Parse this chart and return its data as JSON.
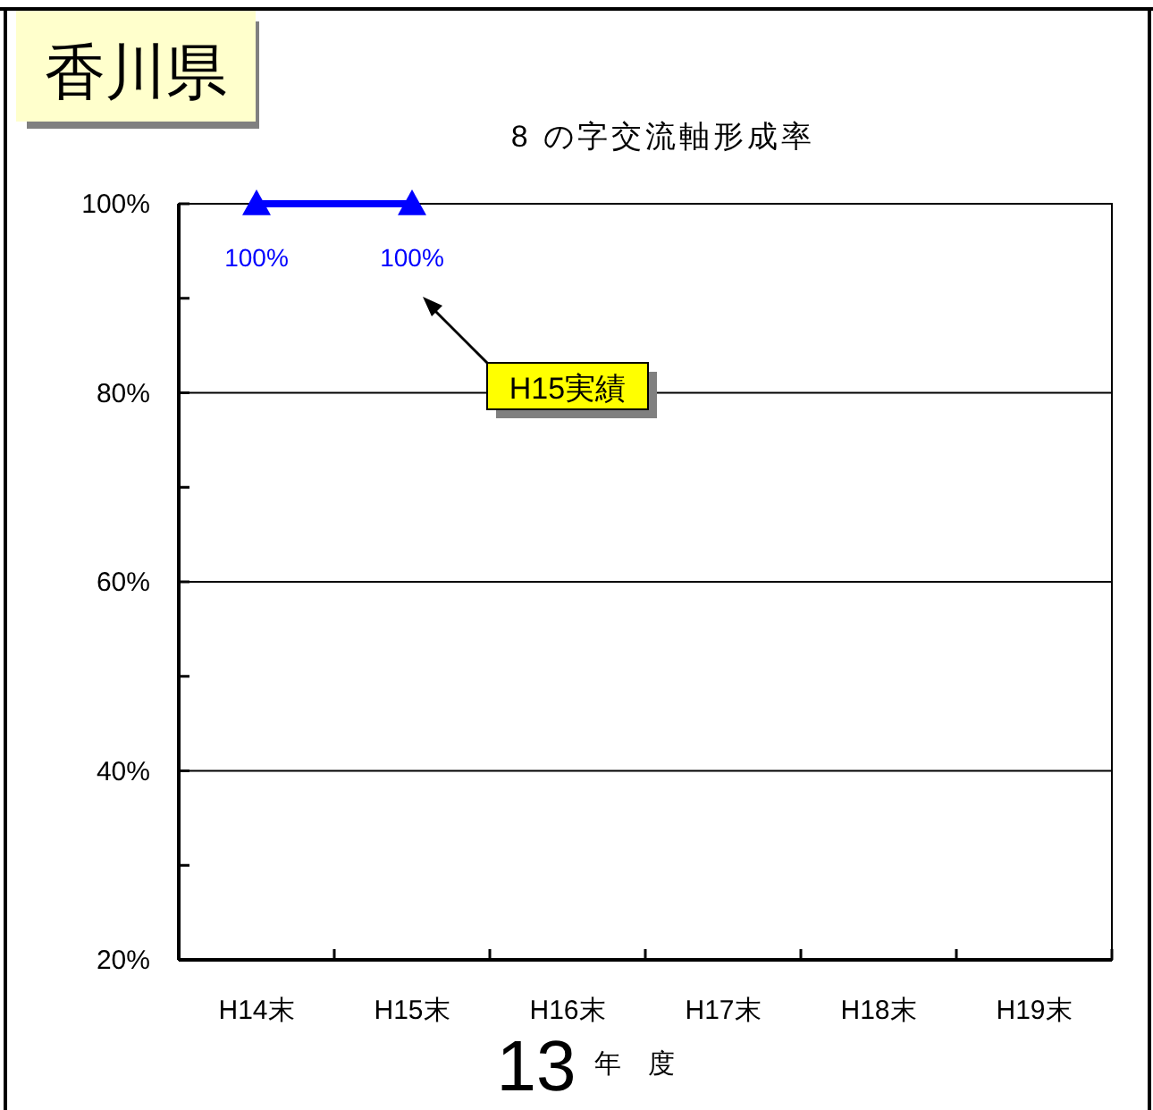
{
  "chart_data": {
    "type": "line",
    "title": "8 の字交流軸形成率",
    "xlabel": "年　度",
    "categories": [
      "H14末",
      "H15末",
      "H16末",
      "H17末",
      "H18末",
      "H19末"
    ],
    "series": [
      {
        "color": "#0000ff",
        "values": [
          100,
          100,
          null,
          null,
          null,
          null
        ],
        "value_labels": [
          "100%",
          "100%",
          null,
          null,
          null,
          null
        ]
      }
    ],
    "ylim": [
      20,
      100
    ],
    "yticks": [
      {
        "value": 20,
        "label": "20%"
      },
      {
        "value": 30,
        "label": null
      },
      {
        "value": 40,
        "label": "40%"
      },
      {
        "value": 50,
        "label": null
      },
      {
        "value": 60,
        "label": "60%"
      },
      {
        "value": 70,
        "label": null
      },
      {
        "value": 80,
        "label": "80%"
      },
      {
        "value": 90,
        "label": null
      },
      {
        "value": 100,
        "label": "100%"
      }
    ],
    "grid": "y",
    "marker": "triangle",
    "line_style": "solid",
    "annotations": [
      "香川県",
      "H15実績",
      "13"
    ]
  }
}
